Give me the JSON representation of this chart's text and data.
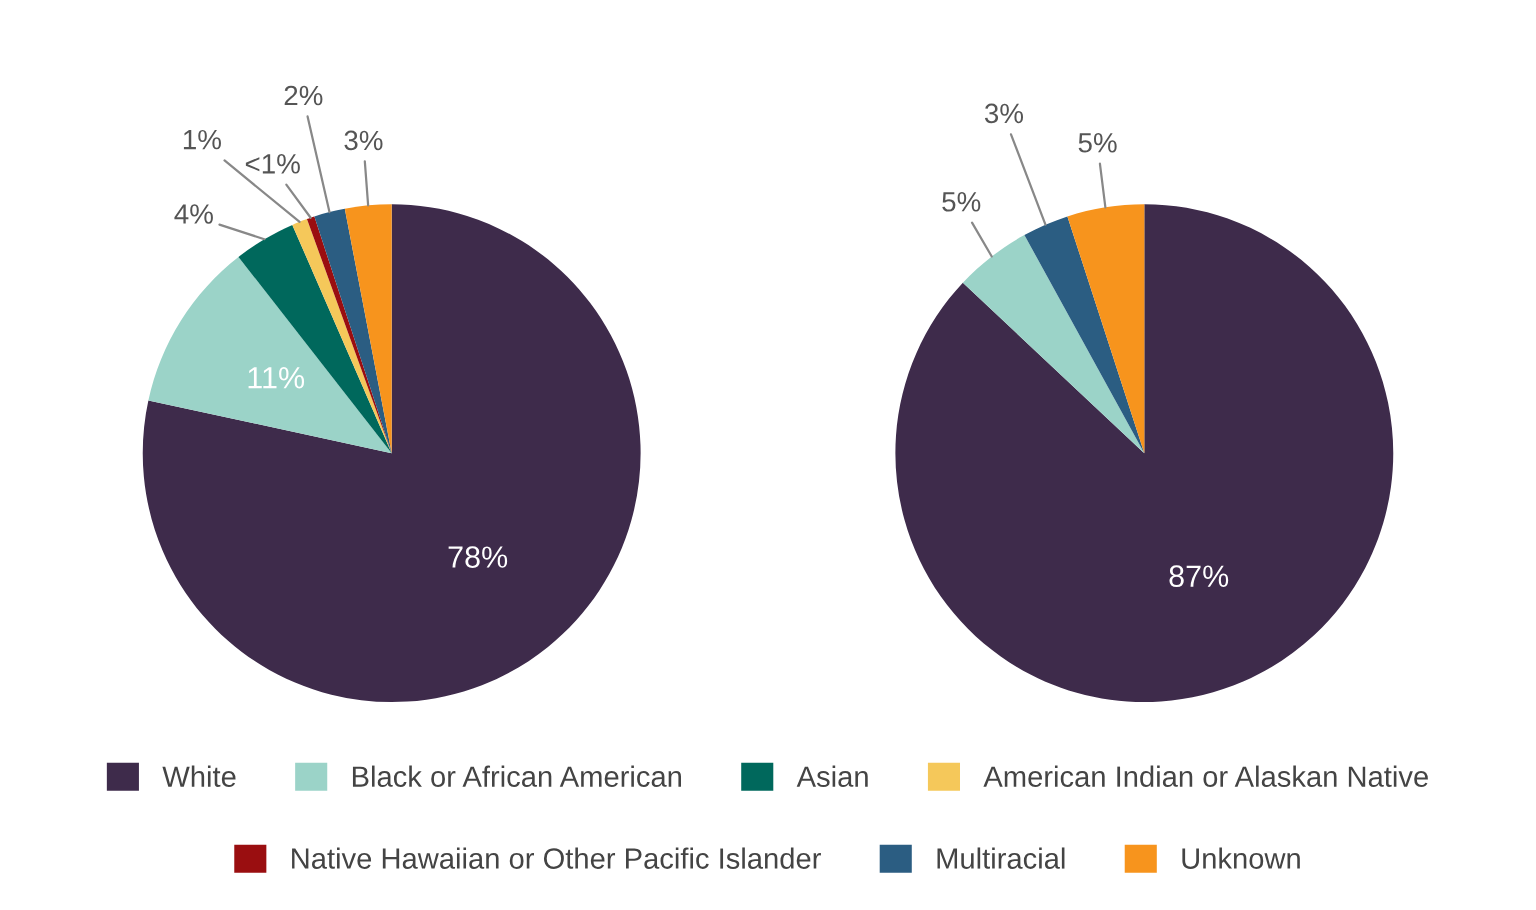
{
  "chart_data": [
    {
      "type": "pie",
      "categories": [
        "White",
        "Black or African American",
        "Asian",
        "American Indian or Alaskan Native",
        "Native Hawaiian or Other Pacific Islander",
        "Multiracial",
        "Unknown"
      ],
      "values": [
        78,
        11,
        4,
        1,
        0.5,
        2,
        3
      ],
      "colors": [
        "#3e2b4b",
        "#9bd3c8",
        "#00685c",
        "#f5c85a",
        "#9a0e10",
        "#2b5d82",
        "#f7941d"
      ],
      "value_labels": [
        "78%",
        "11%",
        "4%",
        "1%",
        "<1%",
        "2%",
        "3%"
      ],
      "legend": "bottom"
    },
    {
      "type": "pie",
      "categories": [
        null,
        null,
        null,
        null
      ],
      "values": [
        87,
        5,
        3,
        5
      ],
      "colors": [
        "#3e2b4b",
        "#9bd3c8",
        "#2b5d82",
        "#f7941d"
      ],
      "value_labels": [
        "87%",
        "5%",
        "3%",
        "5%"
      ]
    }
  ]
}
